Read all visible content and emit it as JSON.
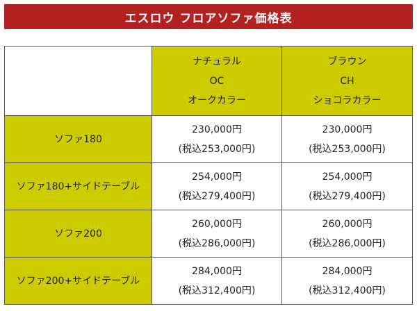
{
  "title": "エスロウ フロアソファ価格表",
  "columns": [
    {
      "line1": "ナチュラル",
      "line2": "OC",
      "line3": "オークカラー"
    },
    {
      "line1": "ブラウン",
      "line2": "CH",
      "line3": "ショコラカラー"
    }
  ],
  "rows": [
    {
      "label": "ソファ180",
      "prices": [
        {
          "price": "230,000円",
          "tax": "(税込253,000円)"
        },
        {
          "price": "230,000円",
          "tax": "(税込253,000円)"
        }
      ]
    },
    {
      "label": "ソファ180+サイドテーブル",
      "prices": [
        {
          "price": "254,000円",
          "tax": "(税込279,400円)"
        },
        {
          "price": "254,000円",
          "tax": "(税込279,400円)"
        }
      ]
    },
    {
      "label": "ソファ200",
      "prices": [
        {
          "price": "260,000円",
          "tax": "(税込286,000円)"
        },
        {
          "price": "260,000円",
          "tax": "(税込286,000円)"
        }
      ]
    },
    {
      "label": "ソファ200+サイドテーブル",
      "prices": [
        {
          "price": "284,000円",
          "tax": "(税込312,400円)"
        },
        {
          "price": "284,000円",
          "tax": "(税込312,400円)"
        }
      ]
    }
  ],
  "colors": {
    "banner": "#b42121",
    "accent": "#cccc00"
  }
}
